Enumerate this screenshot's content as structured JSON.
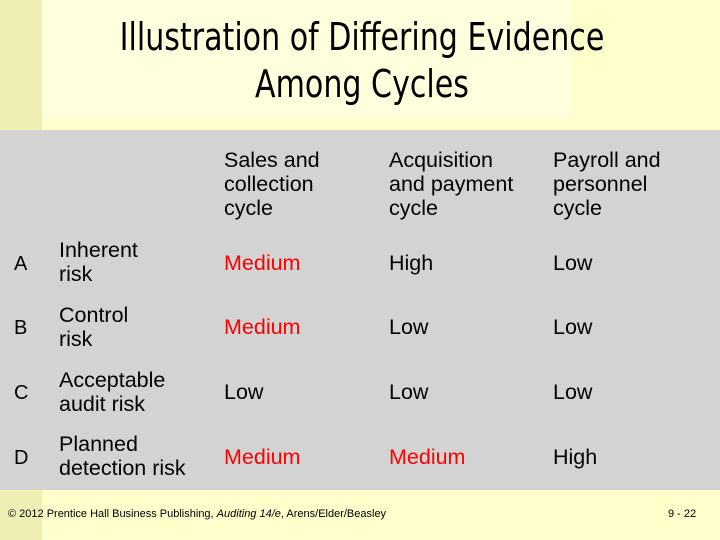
{
  "title_line1": "Illustration of Differing Evidence",
  "title_line2": "Among Cycles",
  "headers": [
    [
      "Sales and",
      "collection",
      "cycle"
    ],
    [
      "Acquisition",
      "and payment",
      "cycle"
    ],
    [
      "Payroll and",
      "personnel",
      "cycle"
    ]
  ],
  "rows": [
    {
      "letter": "A",
      "label": [
        "Inherent",
        "risk"
      ],
      "values": [
        "Medium",
        "High",
        "Low"
      ]
    },
    {
      "letter": "B",
      "label": [
        "Control",
        "risk"
      ],
      "values": [
        "Medium",
        "Low",
        "Low"
      ]
    },
    {
      "letter": "C",
      "label": [
        "Acceptable",
        "audit risk"
      ],
      "values": [
        "Low",
        "Low",
        "Low"
      ]
    },
    {
      "letter": "D",
      "label": [
        "Planned",
        "detection risk"
      ],
      "values": [
        "Medium",
        "Medium",
        "High"
      ]
    }
  ],
  "colors": {
    "medium": "#FF0000",
    "normal": "#000000"
  },
  "footer": {
    "prefix": "© 2012 Prentice Hall Business Publishing, ",
    "italic": "Auditing 14/e",
    "suffix": ", Arens/Elder/Beasley",
    "page": "9 - 22"
  }
}
